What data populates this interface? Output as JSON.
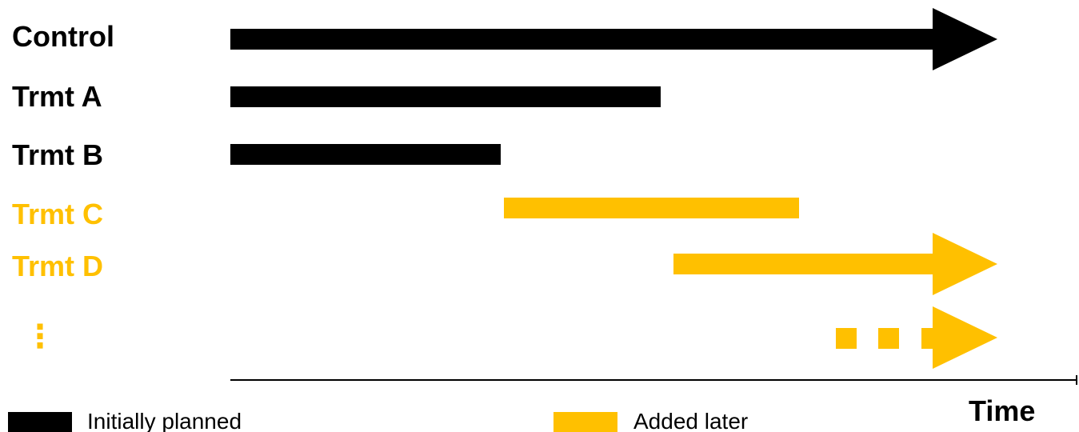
{
  "colors": {
    "initial": "#000000",
    "added": "#ffc000",
    "axis": "#000000"
  },
  "arms": [
    {
      "label": "Trmt A",
      "group": "initial"
    },
    {
      "label": "Trmt B",
      "group": "initial"
    },
    {
      "label": "Trmt C",
      "group": "added"
    },
    {
      "label": "Trmt D",
      "group": "added"
    }
  ],
  "control_label": "Control",
  "ellipsis": "⋮",
  "axis": {
    "label": "Time"
  },
  "legend": [
    {
      "label": "Initially planned",
      "group": "initial"
    },
    {
      "label": "Added later",
      "group": "added"
    }
  ]
}
